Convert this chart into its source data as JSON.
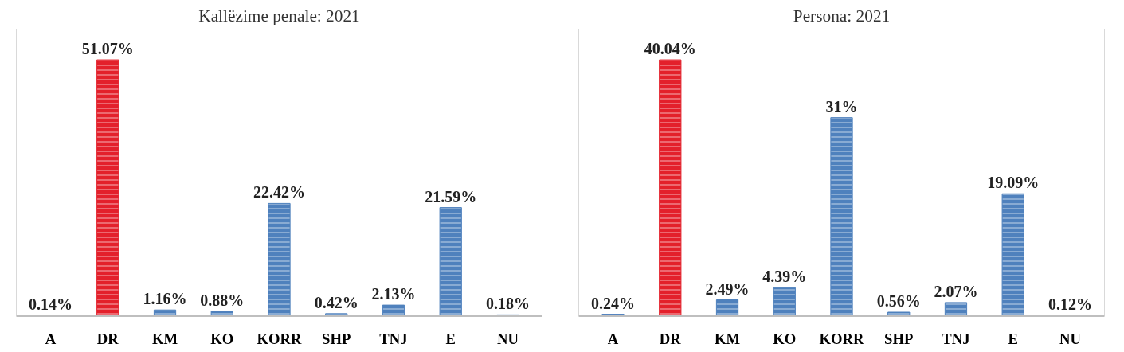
{
  "chart_data": [
    {
      "type": "bar",
      "title": "Kallëzime penale: 2021",
      "categories": [
        "A",
        "DR",
        "KM",
        "KO",
        "KORR",
        "SHP",
        "TNJ",
        "E",
        "NU"
      ],
      "values": [
        0.14,
        51.07,
        1.16,
        0.88,
        22.42,
        0.42,
        2.13,
        21.59,
        0.18
      ],
      "value_labels": [
        "0.14%",
        "51.07%",
        "1.16%",
        "0.88%",
        "22.42%",
        "0.42%",
        "2.13%",
        "21.59%",
        "0.18%"
      ],
      "colors": [
        "#4f81bd",
        "#e3202b",
        "#4f81bd",
        "#4f81bd",
        "#4f81bd",
        "#4f81bd",
        "#4f81bd",
        "#4f81bd",
        "#4f81bd"
      ]
    },
    {
      "type": "bar",
      "title": "Persona: 2021",
      "categories": [
        "A",
        "DR",
        "KM",
        "KO",
        "KORR",
        "SHP",
        "TNJ",
        "E",
        "NU"
      ],
      "values": [
        0.24,
        40.04,
        2.49,
        4.39,
        31,
        0.56,
        2.07,
        19.09,
        0.12
      ],
      "value_labels": [
        "0.24%",
        "40.04%",
        "2.49%",
        "4.39%",
        "31%",
        "0.56%",
        "2.07%",
        "19.09%",
        "0.12%"
      ],
      "colors": [
        "#4f81bd",
        "#e3202b",
        "#4f81bd",
        "#4f81bd",
        "#4f81bd",
        "#4f81bd",
        "#4f81bd",
        "#4f81bd",
        "#4f81bd"
      ]
    }
  ]
}
